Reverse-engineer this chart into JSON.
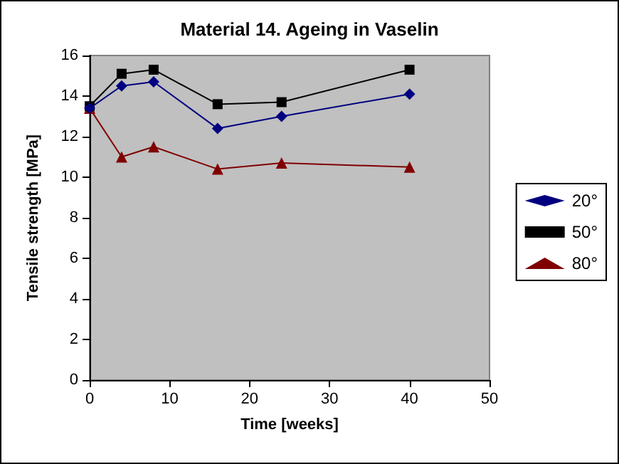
{
  "chart_data": {
    "type": "line",
    "title": "Material 14. Ageing in Vaselin",
    "xlabel": "Time [weeks]",
    "ylabel": "Tensile strength [MPa]",
    "x": [
      0,
      4,
      8,
      16,
      24,
      40
    ],
    "series": [
      {
        "name": "20°",
        "color": "#000080",
        "marker": "diamond",
        "values": [
          13.4,
          14.5,
          14.7,
          12.4,
          13.0,
          14.1
        ]
      },
      {
        "name": "50°",
        "color": "#000000",
        "marker": "square",
        "values": [
          13.5,
          15.1,
          15.3,
          13.6,
          13.7,
          15.3
        ]
      },
      {
        "name": "80°",
        "color": "#800000",
        "marker": "triangle",
        "values": [
          13.4,
          11.0,
          11.5,
          10.4,
          10.7,
          10.5
        ]
      }
    ],
    "xlim": [
      0,
      50
    ],
    "xticks": [
      0,
      10,
      20,
      30,
      40,
      50
    ],
    "ylim": [
      0,
      16
    ],
    "yticks": [
      0,
      2,
      4,
      6,
      8,
      10,
      12,
      14,
      16
    ],
    "grid": false,
    "legend": "right",
    "line_style": "solid"
  }
}
